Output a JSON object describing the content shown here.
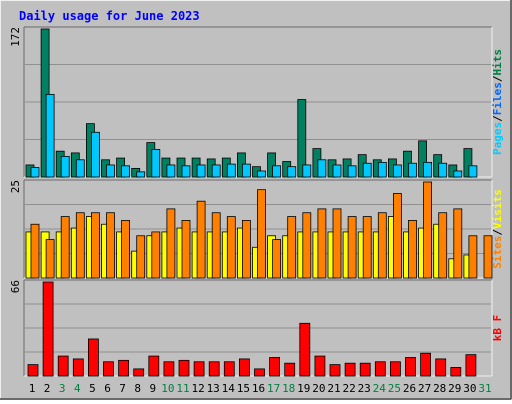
{
  "chart_data": [
    {
      "type": "bar",
      "title": "Daily usage for June 2023",
      "ymax_label": "172",
      "ylim": [
        0,
        172
      ],
      "y_axis_title_parts": [
        {
          "text": "Pages",
          "color": "#00ccff"
        },
        {
          "text": "/",
          "color": "#000000"
        },
        {
          "text": "Files",
          "color": "#0066ff"
        },
        {
          "text": "/",
          "color": "#000000"
        },
        {
          "text": "Hits",
          "color": "#008040"
        }
      ],
      "categories": [
        "1",
        "2",
        "3",
        "4",
        "5",
        "6",
        "7",
        "8",
        "9",
        "10",
        "11",
        "12",
        "13",
        "14",
        "15",
        "16",
        "17",
        "18",
        "19",
        "20",
        "21",
        "22",
        "23",
        "24",
        "25",
        "26",
        "27",
        "28",
        "29",
        "30",
        "31"
      ],
      "series": [
        {
          "name": "Hits",
          "color": "#008060",
          "values": [
            14,
            172,
            30,
            28,
            62,
            20,
            22,
            10,
            40,
            22,
            22,
            22,
            21,
            22,
            28,
            12,
            28,
            18,
            90,
            33,
            20,
            21,
            26,
            20,
            21,
            30,
            42,
            26,
            14,
            33,
            null
          ]
        },
        {
          "name": "Files",
          "color": "#00c8ff",
          "values": [
            11,
            96,
            24,
            20,
            52,
            14,
            13,
            6,
            32,
            14,
            13,
            14,
            14,
            15,
            15,
            7,
            13,
            12,
            14,
            20,
            14,
            13,
            16,
            17,
            14,
            16,
            17,
            16,
            7,
            13,
            null
          ]
        }
      ]
    },
    {
      "type": "bar",
      "ymax_label": "25",
      "ylim": [
        0,
        25
      ],
      "y_axis_title_parts": [
        {
          "text": "Sites",
          "color": "#ff8000"
        },
        {
          "text": "/",
          "color": "#000000"
        },
        {
          "text": "Visits",
          "color": "#ffff00"
        }
      ],
      "categories": [
        "1",
        "2",
        "3",
        "4",
        "5",
        "6",
        "7",
        "8",
        "9",
        "10",
        "11",
        "12",
        "13",
        "14",
        "15",
        "16",
        "17",
        "18",
        "19",
        "20",
        "21",
        "22",
        "23",
        "24",
        "25",
        "26",
        "27",
        "28",
        "29",
        "30",
        "31"
      ],
      "series": [
        {
          "name": "Visits",
          "color": "#ffff00",
          "values": [
            12,
            12,
            12,
            13,
            16,
            14,
            12,
            7,
            11,
            12,
            13,
            12,
            12,
            12,
            13,
            8,
            11,
            11,
            12,
            12,
            12,
            12,
            12,
            12,
            16,
            12,
            13,
            14,
            5,
            6,
            null
          ]
        },
        {
          "name": "Sites",
          "color": "#ff8000",
          "values": [
            14,
            10,
            16,
            17,
            17,
            17,
            15,
            11,
            12,
            18,
            15,
            20,
            17,
            16,
            15,
            23,
            10,
            16,
            17,
            18,
            18,
            16,
            16,
            17,
            22,
            15,
            25,
            17,
            18,
            11,
            11
          ]
        }
      ]
    },
    {
      "type": "bar",
      "ymax_label": "66",
      "ylim": [
        0,
        66
      ],
      "y_axis_title_parts": [
        {
          "text": "kB F",
          "color": "#ff0000"
        }
      ],
      "categories": [
        "1",
        "2",
        "3",
        "4",
        "5",
        "6",
        "7",
        "8",
        "9",
        "10",
        "11",
        "12",
        "13",
        "14",
        "15",
        "16",
        "17",
        "18",
        "19",
        "20",
        "21",
        "22",
        "23",
        "24",
        "25",
        "26",
        "27",
        "28",
        "29",
        "30",
        "31"
      ],
      "series": [
        {
          "name": "kB F",
          "color": "#ff0000",
          "values": [
            8,
            66,
            14,
            12,
            26,
            10,
            11,
            5,
            14,
            10,
            11,
            10,
            10,
            10,
            12,
            5,
            13,
            9,
            37,
            14,
            8,
            9,
            9,
            10,
            10,
            13,
            16,
            12,
            6,
            15,
            null
          ]
        }
      ]
    }
  ],
  "x_labels": [
    {
      "text": "1",
      "color": "#000000"
    },
    {
      "text": "2",
      "color": "#000000"
    },
    {
      "text": "3",
      "color": "#008040"
    },
    {
      "text": "4",
      "color": "#008040"
    },
    {
      "text": "5",
      "color": "#000000"
    },
    {
      "text": "6",
      "color": "#000000"
    },
    {
      "text": "7",
      "color": "#000000"
    },
    {
      "text": "8",
      "color": "#000000"
    },
    {
      "text": "9",
      "color": "#000000"
    },
    {
      "text": "10",
      "color": "#008040"
    },
    {
      "text": "11",
      "color": "#008040"
    },
    {
      "text": "12",
      "color": "#000000"
    },
    {
      "text": "13",
      "color": "#000000"
    },
    {
      "text": "14",
      "color": "#000000"
    },
    {
      "text": "15",
      "color": "#000000"
    },
    {
      "text": "16",
      "color": "#000000"
    },
    {
      "text": "17",
      "color": "#008040"
    },
    {
      "text": "18",
      "color": "#008040"
    },
    {
      "text": "19",
      "color": "#000000"
    },
    {
      "text": "20",
      "color": "#000000"
    },
    {
      "text": "21",
      "color": "#000000"
    },
    {
      "text": "22",
      "color": "#000000"
    },
    {
      "text": "23",
      "color": "#000000"
    },
    {
      "text": "24",
      "color": "#008040"
    },
    {
      "text": "25",
      "color": "#008040"
    },
    {
      "text": "26",
      "color": "#000000"
    },
    {
      "text": "27",
      "color": "#000000"
    },
    {
      "text": "28",
      "color": "#000000"
    },
    {
      "text": "29",
      "color": "#000000"
    },
    {
      "text": "30",
      "color": "#000000"
    },
    {
      "text": "31",
      "color": "#008040"
    }
  ],
  "colors": {
    "background": "#c0c0c0",
    "title": "#0000ff",
    "gridline": "#909090"
  }
}
